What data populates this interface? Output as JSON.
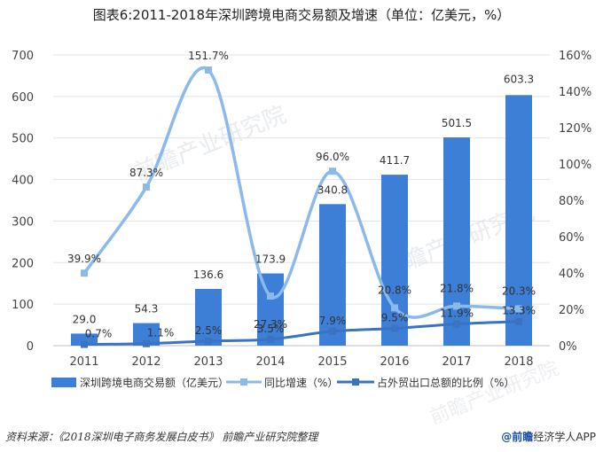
{
  "chart_data": {
    "type": "bar",
    "title": "图表6:2011-2018年深圳跨境电商交易额及增速（单位：亿美元，%）",
    "categories": [
      "2011",
      "2012",
      "2013",
      "2014",
      "2015",
      "2016",
      "2017",
      "2018"
    ],
    "series": [
      {
        "name": "深圳跨境电商交易额（亿美元）",
        "type": "bar",
        "axis": "left",
        "values": [
          29.0,
          54.3,
          136.6,
          173.9,
          340.8,
          411.7,
          501.5,
          603.3
        ],
        "labels": [
          "29.0",
          "54.3",
          "136.6",
          "173.9",
          "340.8",
          "411.7",
          "501.5",
          "603.3"
        ],
        "color": "#3d7fd6"
      },
      {
        "name": "同比增速（%）",
        "type": "line",
        "axis": "right",
        "values": [
          39.9,
          87.3,
          151.7,
          27.3,
          96.0,
          20.8,
          21.8,
          20.3
        ],
        "labels": [
          "39.9%",
          "87.3%",
          "151.7%",
          "27.3%",
          "96.0%",
          "20.8%",
          "21.8%",
          "20.3%"
        ],
        "color": "#8ab9ec"
      },
      {
        "name": "占外贸出口总额的比例（%）",
        "type": "line",
        "axis": "right",
        "values": [
          0.7,
          1.1,
          2.5,
          3.5,
          7.9,
          9.5,
          11.9,
          13.3
        ],
        "labels": [
          "0.7%",
          "1.1%",
          "2.5%",
          "3.5%",
          "7.9%",
          "9.5%",
          "11.9%",
          "13.3%"
        ],
        "color": "#3a73c2"
      }
    ],
    "ylim_left": [
      0,
      700
    ],
    "yticks_left": [
      "0",
      "100",
      "200",
      "300",
      "400",
      "500",
      "600",
      "700"
    ],
    "ylim_right": [
      0,
      160
    ],
    "yticks_right": [
      "0%",
      "20%",
      "40%",
      "60%",
      "80%",
      "100%",
      "120%",
      "140%",
      "160%"
    ],
    "legend_position": "bottom"
  },
  "watermark": "前瞻产业研究院",
  "footer": {
    "source": "资料来源：《2018深圳电子商务发展白皮书》 前瞻产业研究院整理",
    "brand_logo": "@前瞻",
    "brand_rest": "经济学人APP"
  }
}
